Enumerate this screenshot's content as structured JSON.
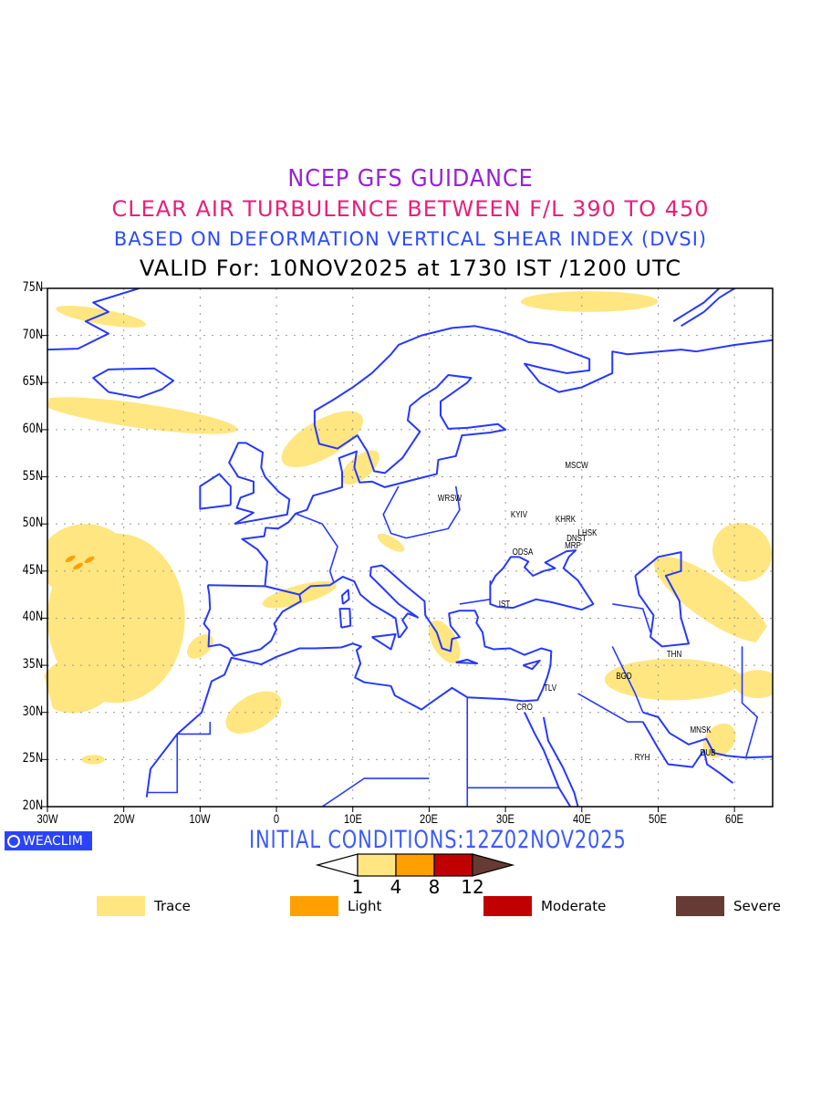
{
  "titles": {
    "line1": "NCEP GFS GUIDANCE",
    "line2": "CLEAR AIR TURBULENCE BETWEEN F/L 390 TO 450",
    "line3": "BASED ON DEFORMATION VERTICAL SHEAR INDEX (DVSI)",
    "line4": "VALID For: 10NOV2025 at 1730 IST /1200 UTC"
  },
  "map": {
    "lon_range": [
      -30,
      65
    ],
    "lat_range": [
      20,
      75
    ],
    "lon_ticks": [
      "30W",
      "20W",
      "10W",
      "0",
      "10E",
      "20E",
      "30E",
      "40E",
      "50E",
      "60E"
    ],
    "lat_ticks": [
      "20N",
      "25N",
      "30N",
      "35N",
      "40N",
      "45N",
      "50N",
      "55N",
      "60N",
      "65N",
      "70N",
      "75N"
    ],
    "coast_color": "#2638ff",
    "cities": [
      {
        "name": "MSCW",
        "lon": 39.3,
        "lat": 56.0
      },
      {
        "name": "WRSW",
        "lon": 22.7,
        "lat": 52.5
      },
      {
        "name": "KYIV",
        "lon": 31.8,
        "lat": 50.8
      },
      {
        "name": "KHRK",
        "lon": 37.9,
        "lat": 50.3
      },
      {
        "name": "LHSK",
        "lon": 40.8,
        "lat": 48.9
      },
      {
        "name": "DNST",
        "lon": 39.3,
        "lat": 48.3
      },
      {
        "name": "MRP",
        "lon": 38.8,
        "lat": 47.5
      },
      {
        "name": "ODSA",
        "lon": 32.2,
        "lat": 46.8
      },
      {
        "name": "IST",
        "lon": 29.9,
        "lat": 41.3
      },
      {
        "name": "THN",
        "lon": 52.1,
        "lat": 36.0
      },
      {
        "name": "BGD",
        "lon": 45.5,
        "lat": 33.7
      },
      {
        "name": "TLV",
        "lon": 35.8,
        "lat": 32.4
      },
      {
        "name": "CRO",
        "lon": 32.5,
        "lat": 30.4
      },
      {
        "name": "MNSK",
        "lon": 55.5,
        "lat": 27.9
      },
      {
        "name": "DUB",
        "lon": 56.5,
        "lat": 25.5
      },
      {
        "name": "RYH",
        "lon": 47.9,
        "lat": 25.0
      }
    ]
  },
  "branding": {
    "weaclim": "WEACLIM"
  },
  "initial_conditions": "INITIAL CONDITIONS:12Z02NOV2025",
  "colorbar": {
    "labels": [
      "1",
      "4",
      "8",
      "12"
    ],
    "colors": [
      "#ffe680",
      "#ffa000",
      "#c00000",
      "#663b33"
    ]
  },
  "legend": [
    {
      "label": "Trace",
      "color": "#ffe680"
    },
    {
      "label": "Light",
      "color": "#ffa000"
    },
    {
      "label": "Moderate",
      "color": "#c00000"
    },
    {
      "label": "Severe",
      "color": "#663b33"
    }
  ]
}
